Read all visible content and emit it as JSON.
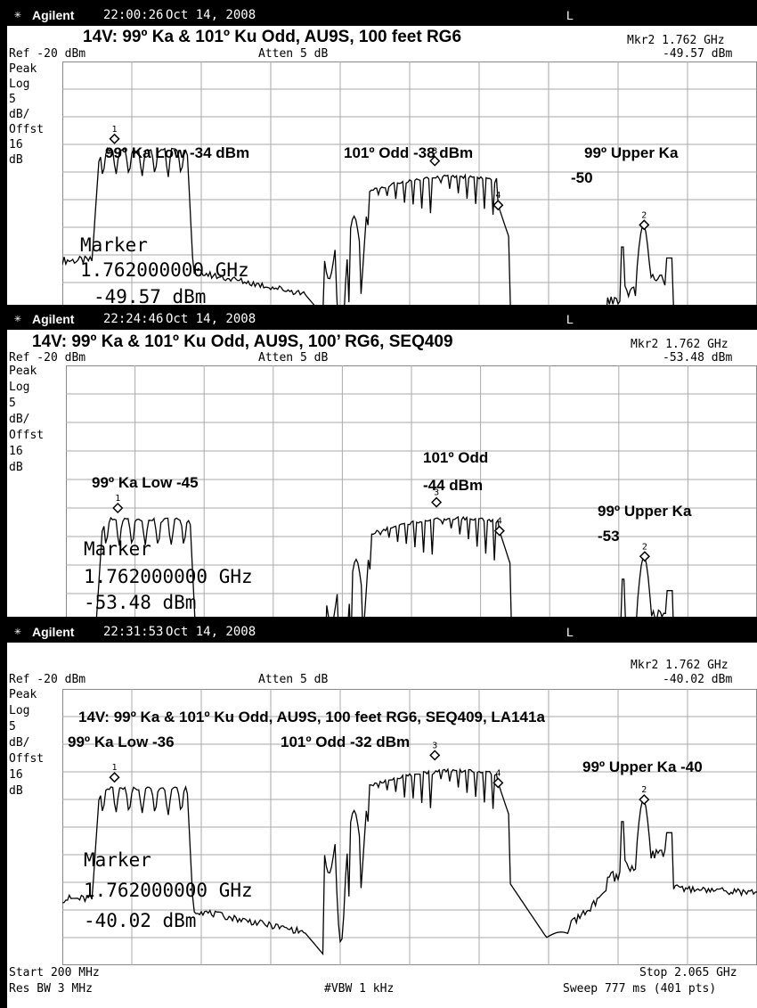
{
  "brand": "Agilent",
  "screens": [
    {
      "time": "22:00:26",
      "date": "Oct 14, 2008",
      "mode": "L",
      "title": "14V: 99º Ka & 101º Ku Odd, AU9S, 100 feet RG6",
      "ref": "Ref -20 dBm",
      "atten": "Atten 5 dB",
      "mkr_freq": "Mkr2 1.762 GHz",
      "mkr_level": "-49.57 dBm",
      "left_labels": [
        "Peak",
        "Log",
        "5",
        "dB/",
        "Offst",
        "16",
        "dB"
      ],
      "annotations": [
        "99º Ka Low -34 dBm",
        "101º Odd -38 dBm",
        "99º Upper Ka",
        "-50"
      ],
      "marker_lines": [
        "Marker",
        "1.762000000 GHz",
        "-49.57 dBm"
      ]
    },
    {
      "time": "22:24:46",
      "date": "Oct 14, 2008",
      "mode": "L",
      "title": "14V: 99º Ka & 101º Ku Odd, AU9S, 100’ RG6,  SEQ409",
      "ref": "Ref -20 dBm",
      "atten": "Atten 5 dB",
      "mkr_freq": "Mkr2 1.762 GHz",
      "mkr_level": "-53.48 dBm",
      "left_labels": [
        "Peak",
        "Log",
        "5",
        "dB/",
        "Offst",
        "16",
        "dB"
      ],
      "annotations": [
        "99º Ka Low -45",
        "101º Odd",
        "-44 dBm",
        "99º Upper Ka",
        "-53"
      ],
      "marker_lines": [
        "Marker",
        "1.762000000 GHz",
        "-53.48 dBm"
      ]
    },
    {
      "time": "22:31:53",
      "date": "Oct 14, 2008",
      "mode": "L",
      "title": "14V: 99º Ka & 101º Ku Odd, AU9S, 100 feet RG6, SEQ409, LA141a",
      "ref": "Ref -20 dBm",
      "atten": "Atten 5 dB",
      "mkr_freq": "Mkr2 1.762 GHz",
      "mkr_level": "-40.02 dBm",
      "left_labels": [
        "Peak",
        "Log",
        "5",
        "dB/",
        "Offst",
        "16",
        "dB"
      ],
      "annotations": [
        "99º Ka Low -36",
        "101º Odd -32 dBm",
        "99º Upper Ka -40"
      ],
      "marker_lines": [
        "Marker",
        "1.762000000 GHz",
        "-40.02 dBm"
      ],
      "start": "Start 200 MHz",
      "stop": "Stop 2.065 GHz",
      "rbw": "Res BW 3 MHz",
      "vbw": "#VBW 1 kHz",
      "sweep": "Sweep 777 ms (401 pts)"
    }
  ],
  "chart_data": [
    {
      "type": "line",
      "title": "14V: 99º Ka & 101º Ku Odd, AU9S, 100 feet RG6",
      "x_range_ghz": [
        0.2,
        2.065
      ],
      "ylabel": "dBm",
      "ylim": [
        -70,
        -20
      ],
      "grid": true,
      "markers": [
        {
          "label": "1",
          "x_ghz": 0.34,
          "dbm": -34
        },
        {
          "label": "3",
          "x_ghz": 1.2,
          "dbm": -38
        },
        {
          "label": "4",
          "x_ghz": 1.37,
          "dbm": -46
        },
        {
          "label": "2",
          "x_ghz": 1.762,
          "dbm": -49.57
        }
      ]
    },
    {
      "type": "line",
      "title": "14V: 99º Ka & 101º Ku Odd, AU9S, 100’ RG6,  SEQ409",
      "x_range_ghz": [
        0.2,
        2.065
      ],
      "ylabel": "dBm",
      "ylim": [
        -70,
        -20
      ],
      "grid": true,
      "markers": [
        {
          "label": "1",
          "x_ghz": 0.34,
          "dbm": -45
        },
        {
          "label": "3",
          "x_ghz": 1.2,
          "dbm": -44
        },
        {
          "label": "4",
          "x_ghz": 1.37,
          "dbm": -49
        },
        {
          "label": "2",
          "x_ghz": 1.762,
          "dbm": -53.48
        }
      ]
    },
    {
      "type": "line",
      "title": "14V: 99º Ka & 101º Ku Odd, AU9S, 100 feet RG6, SEQ409, LA141a",
      "x_range_ghz": [
        0.2,
        2.065
      ],
      "ylabel": "dBm",
      "ylim": [
        -70,
        -20
      ],
      "grid": true,
      "markers": [
        {
          "label": "1",
          "x_ghz": 0.34,
          "dbm": -36
        },
        {
          "label": "3",
          "x_ghz": 1.2,
          "dbm": -32
        },
        {
          "label": "4",
          "x_ghz": 1.37,
          "dbm": -37
        },
        {
          "label": "2",
          "x_ghz": 1.762,
          "dbm": -40.02
        }
      ]
    }
  ]
}
